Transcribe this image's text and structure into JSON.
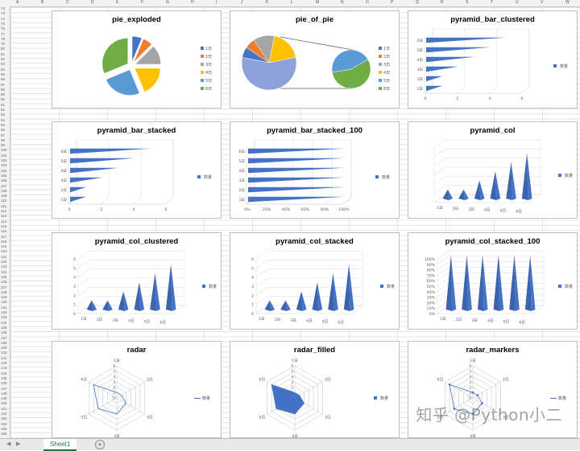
{
  "columns": [
    "A",
    "B",
    "C",
    "D",
    "E",
    "F",
    "G",
    "H",
    "I",
    "J",
    "K",
    "L",
    "M",
    "N",
    "O",
    "P",
    "Q",
    "R",
    "S",
    "T",
    "U",
    "V",
    "W"
  ],
  "first_row": 72,
  "row_count": 85,
  "sheet_tab": "Sheet1",
  "watermark": "知乎 @Python小二",
  "colors": {
    "series_blue": "#4472c4",
    "orange": "#ed7d31",
    "gray": "#a5a5a5",
    "gold": "#ffc000",
    "lightblue": "#5b9bd5",
    "green": "#70ad47"
  },
  "chart_data": [
    {
      "type": "pie",
      "title": "pie_exploded",
      "categories": [
        "1日",
        "2日",
        "3日",
        "4日",
        "5日",
        "6日"
      ],
      "values": [
        1,
        1,
        2,
        3,
        4,
        5
      ],
      "legend": "right"
    },
    {
      "type": "pie",
      "title": "pie_of_pie",
      "categories": [
        "1日",
        "2日",
        "3日",
        "4日",
        "5日",
        "6日"
      ],
      "values": [
        1,
        1,
        2,
        3,
        4,
        5
      ],
      "legend": "right"
    },
    {
      "type": "bar",
      "title": "pyramid_bar_clustered",
      "categories": [
        "1日",
        "2日",
        "3日",
        "4日",
        "5日",
        "6日"
      ],
      "values": [
        1,
        1,
        2,
        3,
        4,
        5
      ],
      "ylim": [
        0,
        6
      ],
      "ticks": [
        "0",
        "2",
        "4",
        "6"
      ],
      "legend": "right",
      "series": [
        {
          "name": "数量",
          "values": [
            1,
            1,
            2,
            3,
            4,
            5
          ]
        }
      ]
    },
    {
      "type": "bar",
      "title": "pyramid_bar_stacked",
      "categories": [
        "1日",
        "2日",
        "3日",
        "4日",
        "5日",
        "6日"
      ],
      "values": [
        1,
        1,
        2,
        3,
        4,
        5
      ],
      "ylim": [
        0,
        6
      ],
      "ticks": [
        "0",
        "2",
        "4",
        "6"
      ],
      "legend": "right",
      "series": [
        {
          "name": "数量",
          "values": [
            1,
            1,
            2,
            3,
            4,
            5
          ]
        }
      ]
    },
    {
      "type": "bar",
      "title": "pyramid_bar_stacked_100",
      "categories": [
        "1日",
        "2日",
        "3日",
        "4日",
        "5日",
        "6日"
      ],
      "values": [
        100,
        100,
        100,
        100,
        100,
        100
      ],
      "ylim": [
        0,
        100
      ],
      "ticks": [
        "0%",
        "20%",
        "40%",
        "60%",
        "80%",
        "100%"
      ],
      "legend": "right",
      "series": [
        {
          "name": "数量",
          "values": [
            100,
            100,
            100,
            100,
            100,
            100
          ]
        }
      ]
    },
    {
      "type": "bar",
      "title": "pyramid_col",
      "categories": [
        "1日",
        "2日",
        "3日",
        "4日",
        "5日",
        "6日"
      ],
      "values": [
        1,
        1,
        2,
        3,
        4,
        5
      ],
      "ylim": [
        0,
        6
      ],
      "legend": "right",
      "series": [
        {
          "name": "数量",
          "values": [
            1,
            1,
            2,
            3,
            4,
            5
          ]
        }
      ]
    },
    {
      "type": "bar",
      "title": "pyramid_col_clustered",
      "categories": [
        "1日",
        "2日",
        "3日",
        "4日",
        "5日",
        "6日"
      ],
      "values": [
        1,
        1,
        2,
        3,
        4,
        5
      ],
      "ylim": [
        0,
        6
      ],
      "ticks": [
        "0",
        "1",
        "2",
        "3",
        "4",
        "5",
        "6"
      ],
      "legend": "right",
      "series": [
        {
          "name": "数量",
          "values": [
            1,
            1,
            2,
            3,
            4,
            5
          ]
        }
      ]
    },
    {
      "type": "bar",
      "title": "pyramid_col_stacked",
      "categories": [
        "1日",
        "2日",
        "3日",
        "4日",
        "5日",
        "6日"
      ],
      "values": [
        1,
        1,
        2,
        3,
        4,
        5
      ],
      "ylim": [
        0,
        6
      ],
      "ticks": [
        "0",
        "1",
        "2",
        "3",
        "4",
        "5",
        "6"
      ],
      "legend": "right",
      "series": [
        {
          "name": "数量",
          "values": [
            1,
            1,
            2,
            3,
            4,
            5
          ]
        }
      ]
    },
    {
      "type": "bar",
      "title": "pyramid_col_stacked_100",
      "categories": [
        "1日",
        "2日",
        "3日",
        "4日",
        "5日",
        "6日"
      ],
      "values": [
        100,
        100,
        100,
        100,
        100,
        100
      ],
      "ylim": [
        0,
        100
      ],
      "ticks": [
        "0%",
        "10%",
        "20%",
        "30%",
        "40%",
        "50%",
        "60%",
        "70%",
        "80%",
        "90%",
        "100%"
      ],
      "legend": "right",
      "series": [
        {
          "name": "数量",
          "values": [
            100,
            100,
            100,
            100,
            100,
            100
          ]
        }
      ]
    },
    {
      "type": "radar",
      "title": "radar",
      "categories": [
        "1日",
        "2日",
        "3日",
        "4日",
        "5日",
        "6日"
      ],
      "values": [
        1,
        1,
        2,
        3,
        4,
        5
      ],
      "ylim": [
        0,
        6
      ],
      "ticks": [
        "0",
        "1",
        "2",
        "3",
        "4",
        "5",
        "6"
      ],
      "legend": "right",
      "filled": false,
      "markers": false,
      "series": [
        {
          "name": "数量",
          "values": [
            1,
            1,
            2,
            3,
            4,
            5
          ]
        }
      ]
    },
    {
      "type": "radar",
      "title": "radar_filled",
      "categories": [
        "1日",
        "2日",
        "3日",
        "4日",
        "5日",
        "6日"
      ],
      "values": [
        1,
        1,
        2,
        3,
        4,
        5
      ],
      "ylim": [
        0,
        6
      ],
      "ticks": [
        "0",
        "1",
        "2",
        "3",
        "4",
        "5",
        "6"
      ],
      "legend": "right",
      "filled": true,
      "markers": false,
      "series": [
        {
          "name": "数量",
          "values": [
            1,
            1,
            2,
            3,
            4,
            5
          ]
        }
      ]
    },
    {
      "type": "radar",
      "title": "radar_markers",
      "categories": [
        "1日",
        "2日",
        "3日",
        "4日",
        "5日",
        "6日"
      ],
      "values": [
        1,
        1,
        2,
        3,
        4,
        5
      ],
      "ylim": [
        0,
        6
      ],
      "ticks": [
        "0",
        "1",
        "2",
        "3",
        "4",
        "5",
        "6"
      ],
      "legend": "right",
      "filled": false,
      "markers": true,
      "series": [
        {
          "name": "数量",
          "values": [
            1,
            1,
            2,
            3,
            4,
            5
          ]
        }
      ]
    }
  ]
}
